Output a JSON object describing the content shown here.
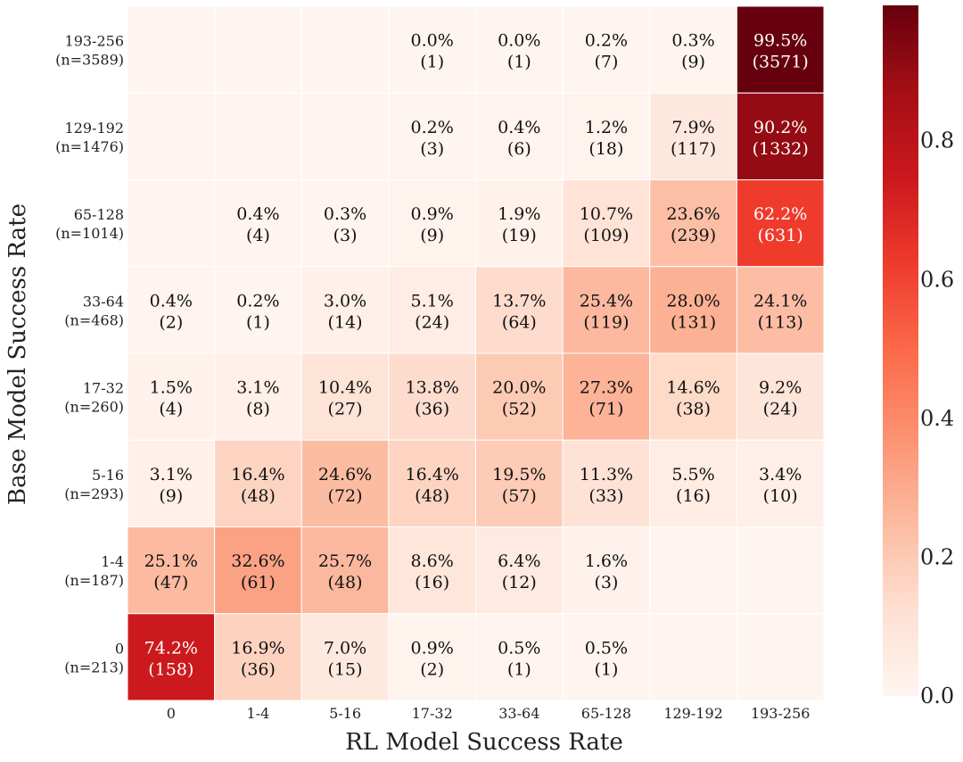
{
  "chart_data": {
    "type": "heatmap",
    "xlabel": "RL Model Success Rate",
    "ylabel": "Base Model Success Rate",
    "x_categories": [
      "0",
      "1-4",
      "5-16",
      "17-32",
      "33-64",
      "65-128",
      "129-192",
      "193-256"
    ],
    "y_categories": [
      {
        "range": "193-256",
        "n": "(n=3589)"
      },
      {
        "range": "129-192",
        "n": "(n=1476)"
      },
      {
        "range": "65-128",
        "n": "(n=1014)"
      },
      {
        "range": "33-64",
        "n": "(n=468)"
      },
      {
        "range": "17-32",
        "n": "(n=260)"
      },
      {
        "range": "5-16",
        "n": "(n=293)"
      },
      {
        "range": "1-4",
        "n": "(n=187)"
      },
      {
        "range": "0",
        "n": "(n=213)"
      }
    ],
    "cells": [
      [
        {
          "value": 0,
          "pct": "",
          "count": ""
        },
        {
          "value": 0,
          "pct": "",
          "count": ""
        },
        {
          "value": 0,
          "pct": "",
          "count": ""
        },
        {
          "value": 0.0,
          "pct": "0.0%",
          "count": "(1)"
        },
        {
          "value": 0.0,
          "pct": "0.0%",
          "count": "(1)"
        },
        {
          "value": 0.002,
          "pct": "0.2%",
          "count": "(7)"
        },
        {
          "value": 0.003,
          "pct": "0.3%",
          "count": "(9)"
        },
        {
          "value": 0.995,
          "pct": "99.5%",
          "count": "(3571)"
        }
      ],
      [
        {
          "value": 0,
          "pct": "",
          "count": ""
        },
        {
          "value": 0,
          "pct": "",
          "count": ""
        },
        {
          "value": 0,
          "pct": "",
          "count": ""
        },
        {
          "value": 0.002,
          "pct": "0.2%",
          "count": "(3)"
        },
        {
          "value": 0.004,
          "pct": "0.4%",
          "count": "(6)"
        },
        {
          "value": 0.012,
          "pct": "1.2%",
          "count": "(18)"
        },
        {
          "value": 0.079,
          "pct": "7.9%",
          "count": "(117)"
        },
        {
          "value": 0.902,
          "pct": "90.2%",
          "count": "(1332)"
        }
      ],
      [
        {
          "value": 0,
          "pct": "",
          "count": ""
        },
        {
          "value": 0.004,
          "pct": "0.4%",
          "count": "(4)"
        },
        {
          "value": 0.003,
          "pct": "0.3%",
          "count": "(3)"
        },
        {
          "value": 0.009,
          "pct": "0.9%",
          "count": "(9)"
        },
        {
          "value": 0.019,
          "pct": "1.9%",
          "count": "(19)"
        },
        {
          "value": 0.107,
          "pct": "10.7%",
          "count": "(109)"
        },
        {
          "value": 0.236,
          "pct": "23.6%",
          "count": "(239)"
        },
        {
          "value": 0.622,
          "pct": "62.2%",
          "count": "(631)"
        }
      ],
      [
        {
          "value": 0.004,
          "pct": "0.4%",
          "count": "(2)"
        },
        {
          "value": 0.002,
          "pct": "0.2%",
          "count": "(1)"
        },
        {
          "value": 0.03,
          "pct": "3.0%",
          "count": "(14)"
        },
        {
          "value": 0.051,
          "pct": "5.1%",
          "count": "(24)"
        },
        {
          "value": 0.137,
          "pct": "13.7%",
          "count": "(64)"
        },
        {
          "value": 0.254,
          "pct": "25.4%",
          "count": "(119)"
        },
        {
          "value": 0.28,
          "pct": "28.0%",
          "count": "(131)"
        },
        {
          "value": 0.241,
          "pct": "24.1%",
          "count": "(113)"
        }
      ],
      [
        {
          "value": 0.015,
          "pct": "1.5%",
          "count": "(4)"
        },
        {
          "value": 0.031,
          "pct": "3.1%",
          "count": "(8)"
        },
        {
          "value": 0.104,
          "pct": "10.4%",
          "count": "(27)"
        },
        {
          "value": 0.138,
          "pct": "13.8%",
          "count": "(36)"
        },
        {
          "value": 0.2,
          "pct": "20.0%",
          "count": "(52)"
        },
        {
          "value": 0.273,
          "pct": "27.3%",
          "count": "(71)"
        },
        {
          "value": 0.146,
          "pct": "14.6%",
          "count": "(38)"
        },
        {
          "value": 0.092,
          "pct": "9.2%",
          "count": "(24)"
        }
      ],
      [
        {
          "value": 0.031,
          "pct": "3.1%",
          "count": "(9)"
        },
        {
          "value": 0.164,
          "pct": "16.4%",
          "count": "(48)"
        },
        {
          "value": 0.246,
          "pct": "24.6%",
          "count": "(72)"
        },
        {
          "value": 0.164,
          "pct": "16.4%",
          "count": "(48)"
        },
        {
          "value": 0.195,
          "pct": "19.5%",
          "count": "(57)"
        },
        {
          "value": 0.113,
          "pct": "11.3%",
          "count": "(33)"
        },
        {
          "value": 0.055,
          "pct": "5.5%",
          "count": "(16)"
        },
        {
          "value": 0.034,
          "pct": "3.4%",
          "count": "(10)"
        }
      ],
      [
        {
          "value": 0.251,
          "pct": "25.1%",
          "count": "(47)"
        },
        {
          "value": 0.326,
          "pct": "32.6%",
          "count": "(61)"
        },
        {
          "value": 0.257,
          "pct": "25.7%",
          "count": "(48)"
        },
        {
          "value": 0.086,
          "pct": "8.6%",
          "count": "(16)"
        },
        {
          "value": 0.064,
          "pct": "6.4%",
          "count": "(12)"
        },
        {
          "value": 0.016,
          "pct": "1.6%",
          "count": "(3)"
        },
        {
          "value": 0,
          "pct": "",
          "count": ""
        },
        {
          "value": 0,
          "pct": "",
          "count": ""
        }
      ],
      [
        {
          "value": 0.742,
          "pct": "74.2%",
          "count": "(158)"
        },
        {
          "value": 0.169,
          "pct": "16.9%",
          "count": "(36)"
        },
        {
          "value": 0.07,
          "pct": "7.0%",
          "count": "(15)"
        },
        {
          "value": 0.009,
          "pct": "0.9%",
          "count": "(2)"
        },
        {
          "value": 0.005,
          "pct": "0.5%",
          "count": "(1)"
        },
        {
          "value": 0.005,
          "pct": "0.5%",
          "count": "(1)"
        },
        {
          "value": 0,
          "pct": "",
          "count": ""
        },
        {
          "value": 0,
          "pct": "",
          "count": ""
        }
      ]
    ],
    "vmin": 0.0,
    "vmax": 0.995,
    "colormap": "Reds",
    "colorbar": {
      "ticks": [
        0.0,
        0.2,
        0.4,
        0.6,
        0.8
      ],
      "tick_labels": [
        "0.0",
        "0.2",
        "0.4",
        "0.6",
        "0.8"
      ]
    }
  }
}
